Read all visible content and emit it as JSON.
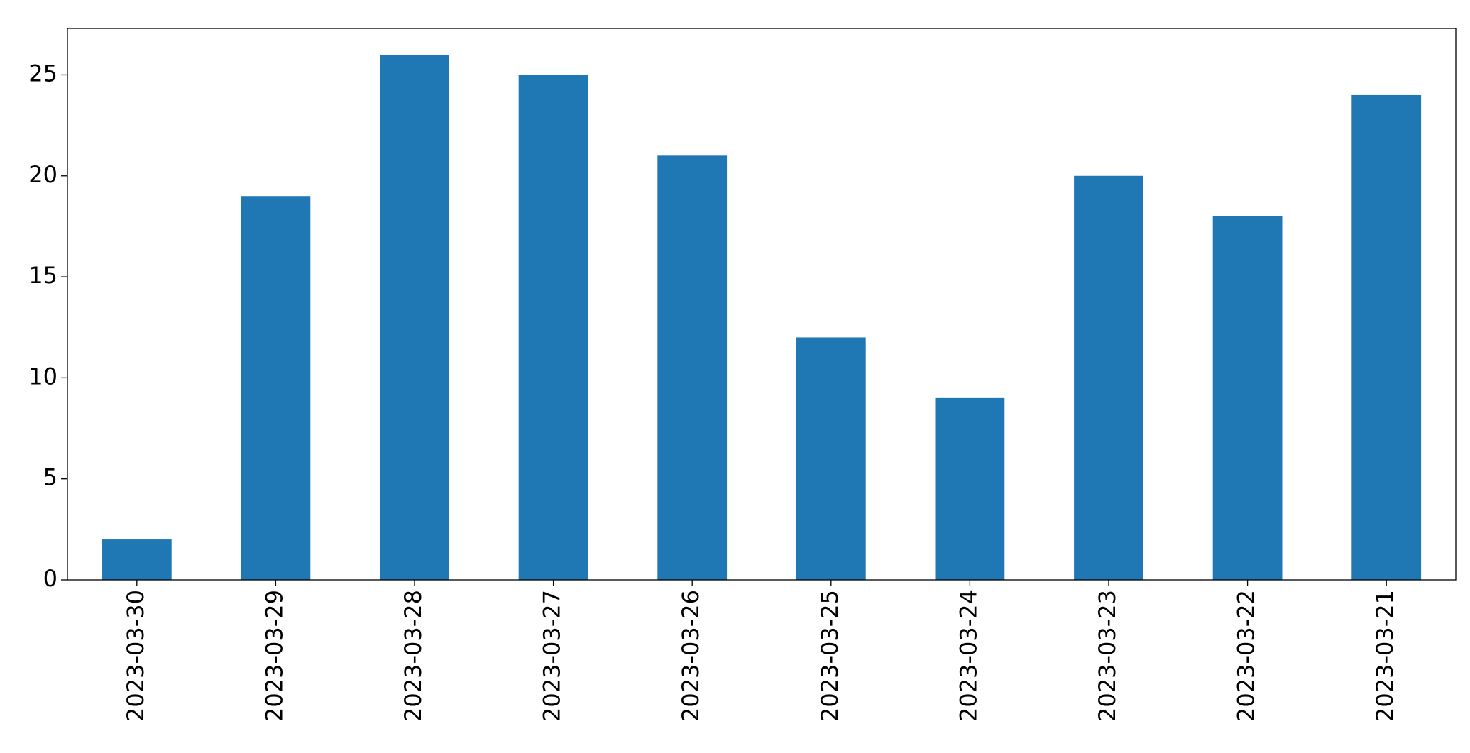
{
  "chart_data": {
    "type": "bar",
    "categories": [
      "2023-03-30",
      "2023-03-29",
      "2023-03-28",
      "2023-03-27",
      "2023-03-26",
      "2023-03-25",
      "2023-03-24",
      "2023-03-23",
      "2023-03-22",
      "2023-03-21"
    ],
    "values": [
      2,
      19,
      26,
      25,
      21,
      12,
      9,
      20,
      18,
      24
    ],
    "color": "#1f77b4",
    "ylim": [
      0,
      27.3
    ],
    "yticks": [
      0,
      5,
      10,
      15,
      20,
      25
    ],
    "grid": false
  }
}
